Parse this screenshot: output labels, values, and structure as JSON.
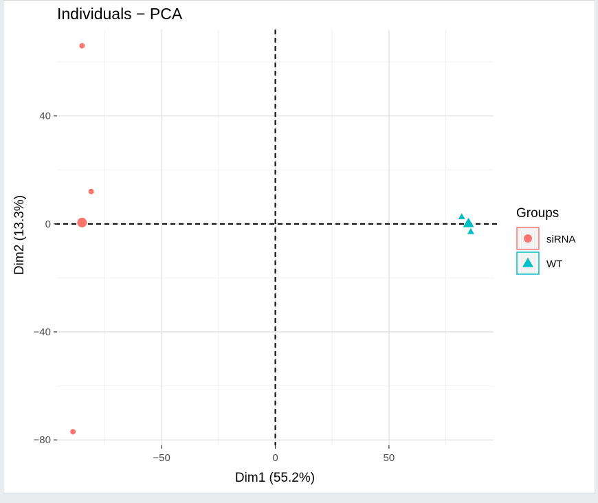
{
  "chart_data": {
    "type": "scatter",
    "title": "Individuals − PCA",
    "xlabel": "Dim1 (55.2%)",
    "ylabel": "Dim2 (13.3%)",
    "xlim": [
      -96,
      96
    ],
    "ylim": [
      -82,
      72
    ],
    "x_ticks": [
      -50,
      0,
      50
    ],
    "x_tick_labels": [
      "−50",
      "0",
      "50"
    ],
    "y_ticks": [
      -80,
      -40,
      0,
      40
    ],
    "y_tick_labels": [
      "−80",
      "−40",
      "0",
      "40"
    ],
    "grid": true,
    "reference_lines": {
      "x": 0,
      "y": 0,
      "style": "dashed"
    },
    "legend": {
      "title": "Groups",
      "position": "right"
    },
    "series": [
      {
        "name": "siRNA",
        "color": "#F8766D",
        "marker": "circle",
        "points": [
          {
            "x": -85,
            "y": 66
          },
          {
            "x": -81,
            "y": 12
          },
          {
            "x": -89,
            "y": -77
          }
        ],
        "centroid": {
          "x": -85,
          "y": 0.5
        }
      },
      {
        "name": "WT",
        "color": "#00BFC4",
        "marker": "triangle",
        "points": [
          {
            "x": 82,
            "y": 2.5
          },
          {
            "x": 85,
            "y": 0.5
          },
          {
            "x": 86,
            "y": -3
          }
        ],
        "centroid": {
          "x": 85,
          "y": 0
        }
      }
    ]
  }
}
